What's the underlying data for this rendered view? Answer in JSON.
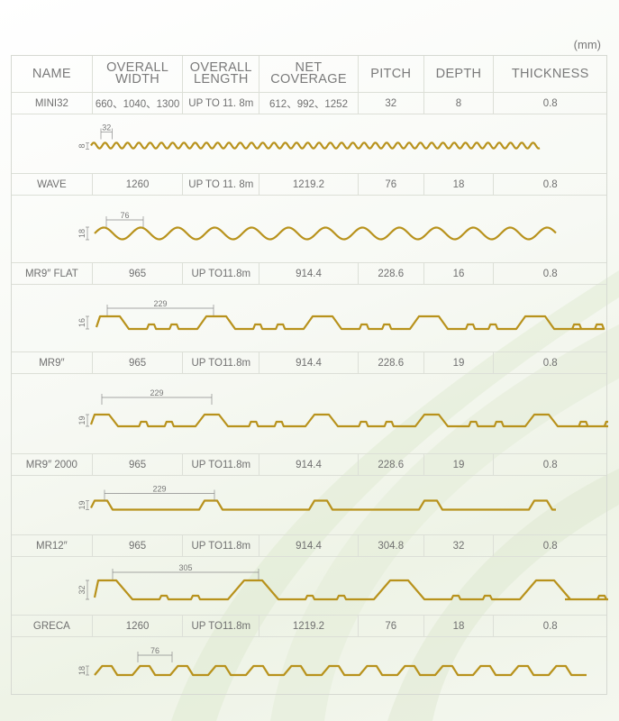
{
  "unit": "(mm)",
  "headers": {
    "name": "NAME",
    "overall_width": [
      "OVERALL",
      "WIDTH"
    ],
    "overall_length": [
      "OVERALL",
      "LENGTH"
    ],
    "net_coverage": [
      "NET",
      "COVERAGE"
    ],
    "pitch": "PITCH",
    "depth": "DEPTH",
    "thickness": "THICKNESS"
  },
  "profiles": [
    {
      "name": "MINI32",
      "overall_width": "660、1040、1300",
      "overall_length": "UP TO 11. 8m",
      "net_coverage": "612、992、1252",
      "pitch": "32",
      "depth": "8",
      "thickness": "0.8",
      "dim_pitch": "32",
      "dim_depth": "8",
      "shape": "mini-wave"
    },
    {
      "name": "WAVE",
      "overall_width": "1260",
      "overall_length": "UP TO 11. 8m",
      "net_coverage": "1219.2",
      "pitch": "76",
      "depth": "18",
      "thickness": "0.8",
      "dim_pitch": "76",
      "dim_depth": "18",
      "shape": "wave"
    },
    {
      "name": "MR9″ FLAT",
      "overall_width": "965",
      "overall_length": "UP TO11.8m",
      "net_coverage": "914.4",
      "pitch": "228.6",
      "depth": "16",
      "thickness": "0.8",
      "dim_pitch": "229",
      "dim_depth": "16",
      "shape": "trapezoid"
    },
    {
      "name": "MR9″",
      "overall_width": "965",
      "overall_length": "UP TO11.8m",
      "net_coverage": "914.4",
      "pitch": "228.6",
      "depth": "19",
      "thickness": "0.8",
      "dim_pitch": "229",
      "dim_depth": "19",
      "shape": "trapezoid-ribbed"
    },
    {
      "name": "MR9″ 2000",
      "overall_width": "965",
      "overall_length": "UP TO11.8m",
      "net_coverage": "914.4",
      "pitch": "228.6",
      "depth": "19",
      "thickness": "0.8",
      "dim_pitch": "229",
      "dim_depth": "19",
      "shape": "low-rib"
    },
    {
      "name": "MR12″",
      "overall_width": "965",
      "overall_length": "UP TO11.8m",
      "net_coverage": "914.4",
      "pitch": "304.8",
      "depth": "32",
      "thickness": "0.8",
      "dim_pitch": "305",
      "dim_depth": "32",
      "shape": "deep-trapezoid"
    },
    {
      "name": "GRECA",
      "overall_width": "1260",
      "overall_length": "UP TO11.8m",
      "net_coverage": "1219.2",
      "pitch": "76",
      "depth": "18",
      "thickness": "0.8",
      "dim_pitch": "76",
      "dim_depth": "18",
      "shape": "greca"
    }
  ],
  "colors": {
    "profile_line": "#b8921c",
    "grid": "#dcdfd7",
    "text": "#707070",
    "background_tint": "#eef3e6"
  }
}
